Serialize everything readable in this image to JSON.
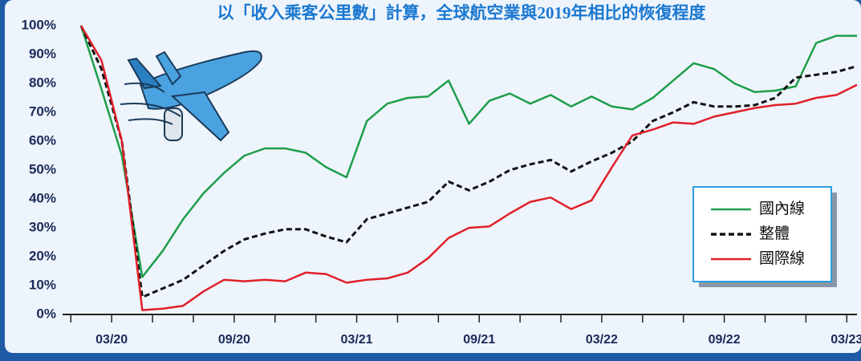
{
  "chart_data": {
    "type": "line",
    "title": "以「收入乘客公里數」計算，全球航空業與2019年相比的恢復程度",
    "categories": [
      null,
      null,
      "03/20",
      null,
      null,
      null,
      null,
      null,
      "09/20",
      null,
      null,
      null,
      null,
      null,
      "03/21",
      null,
      null,
      null,
      null,
      null,
      "09/21",
      null,
      null,
      null,
      null,
      null,
      "03/22",
      null,
      null,
      null,
      null,
      null,
      "09/22",
      null,
      null,
      null,
      null,
      null,
      "03/23"
    ],
    "series": [
      {
        "name": "國內線",
        "color": "#1e9e4a",
        "dash": false,
        "values": [
          100,
          78,
          55,
          13,
          22,
          33,
          42,
          49,
          55,
          57.5,
          57.5,
          56,
          51,
          47.5,
          67,
          73,
          75,
          75.5,
          81,
          66,
          74,
          76.5,
          73,
          76,
          72,
          75.5,
          72,
          71,
          75,
          81,
          87,
          85,
          80,
          77,
          77.5,
          79,
          94,
          96.5,
          96.5
        ]
      },
      {
        "name": "整體",
        "color": "#111111",
        "dash": true,
        "values": [
          100,
          85,
          60,
          6,
          9,
          12,
          17,
          22,
          26,
          28,
          29.5,
          29.5,
          27,
          25,
          33,
          35,
          37,
          39,
          46,
          43,
          46,
          50,
          52,
          53.5,
          49.5,
          53,
          56,
          60,
          67,
          70,
          73.5,
          72,
          72,
          72.5,
          75,
          82,
          83,
          84,
          86
        ]
      },
      {
        "name": "國際線",
        "color": "#e0202a",
        "dash": false,
        "values": [
          100,
          88,
          60,
          1.5,
          2,
          3,
          8,
          12,
          11.5,
          12,
          11.5,
          14.5,
          14,
          11,
          12,
          12.5,
          14.5,
          19.5,
          26.5,
          30,
          30.5,
          35,
          39,
          40.5,
          36.5,
          39.5,
          51,
          62,
          64,
          66.5,
          66,
          68.5,
          70,
          71.5,
          72.5,
          73,
          75,
          76,
          79.5
        ]
      }
    ],
    "ylim": [
      0,
      100
    ],
    "yticks": [
      {
        "value": 0,
        "label": "0%"
      },
      {
        "value": 10,
        "label": "10%"
      },
      {
        "value": 20,
        "label": "20%"
      },
      {
        "value": 30,
        "label": "30%"
      },
      {
        "value": 40,
        "label": "40%"
      },
      {
        "value": 50,
        "label": "50%"
      },
      {
        "value": 60,
        "label": "60%"
      },
      {
        "value": 70,
        "label": "70%"
      },
      {
        "value": 80,
        "label": "80%"
      },
      {
        "value": 90,
        "label": "90%"
      },
      {
        "value": 100,
        "label": "100%"
      }
    ],
    "legend": "lower-right"
  }
}
